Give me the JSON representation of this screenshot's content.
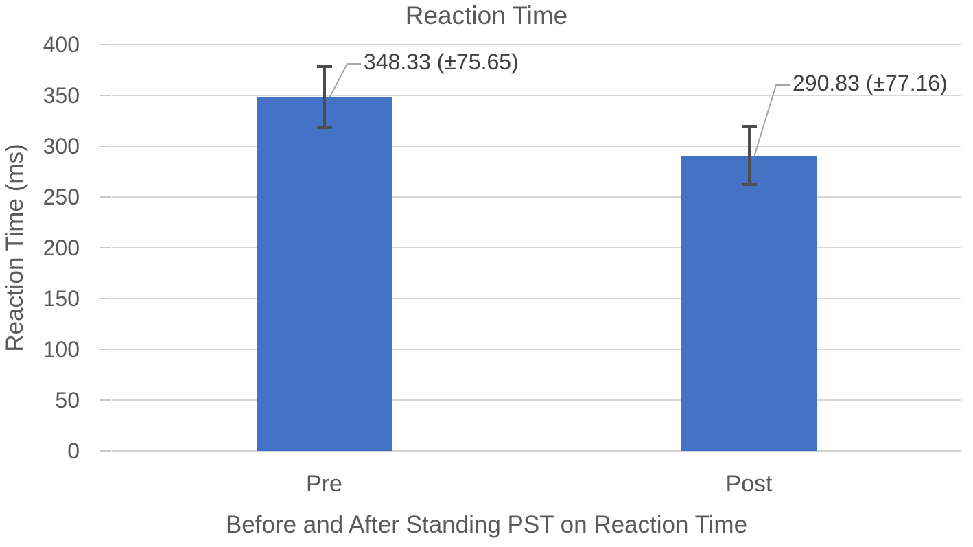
{
  "chart_data": {
    "type": "bar",
    "title": "Reaction Time",
    "categories": [
      "Pre",
      "Post"
    ],
    "values": [
      348.33,
      290.83
    ],
    "std_devs": [
      75.65,
      77.16
    ],
    "data_labels": [
      "348.33 (±75.65)",
      "290.83 (±77.16)"
    ],
    "error_bar_half_length_ms": [
      30,
      29
    ],
    "xlabel": "Before and After Standing PST on Reaction Time",
    "ylabel": "Reaction Time (ms)",
    "ylim": [
      0,
      400
    ],
    "yticks": [
      400,
      350,
      300,
      250,
      200,
      150,
      100,
      50,
      0
    ],
    "grid": "horizontal",
    "legend_position": "none",
    "colors": {
      "bar_fill": "#4472C4",
      "gridline": "#D9D9D9",
      "axis_line": "#D2D2D2",
      "tick_mark": "#C9C9C9",
      "axis_text": "#595959",
      "title_text": "#595959",
      "data_label_text": "#404040",
      "error_bar": "#4D4D4D",
      "leader_line": "#A6A6A6"
    }
  }
}
